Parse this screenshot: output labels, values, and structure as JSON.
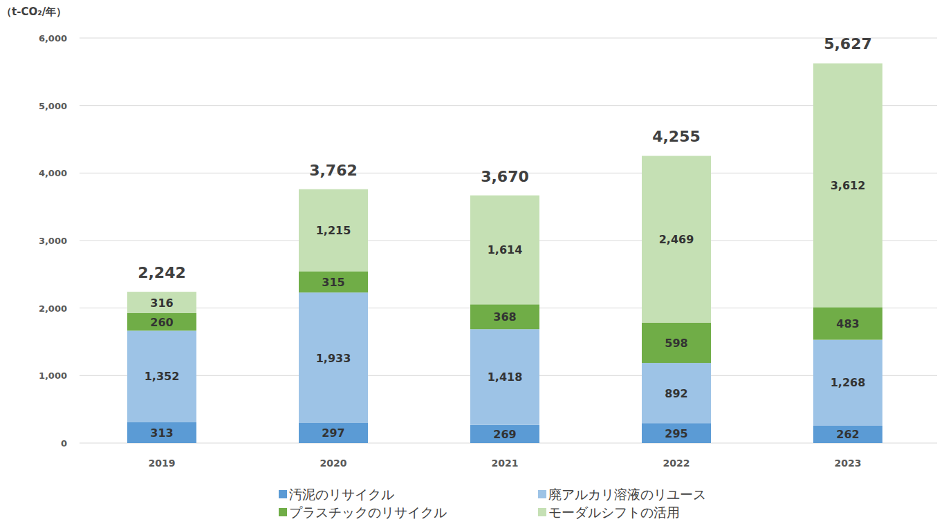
{
  "chart_data": {
    "type": "bar",
    "y_label": "（t-CO₂/年）",
    "categories": [
      "2019",
      "2020",
      "2021",
      "2022",
      "2023"
    ],
    "series": [
      {
        "name": "汚泥のリサイクル",
        "color": "#5b9bd5",
        "values": [
          313,
          297,
          269,
          295,
          262
        ],
        "value_labels": [
          "313",
          "297",
          "269",
          "295",
          "262"
        ]
      },
      {
        "name": "廃アルカリ溶液のリユース",
        "color": "#9dc3e6",
        "values": [
          1352,
          1933,
          1418,
          892,
          1268
        ],
        "value_labels": [
          "1,352",
          "1,933",
          "1,418",
          "892",
          "1,268"
        ]
      },
      {
        "name": "プラスチックのリサイクル",
        "color": "#70ad47",
        "values": [
          260,
          315,
          368,
          598,
          483
        ],
        "value_labels": [
          "260",
          "315",
          "368",
          "598",
          "483"
        ]
      },
      {
        "name": "モーダルシフトの活用",
        "color": "#c5e0b4",
        "values": [
          316,
          1215,
          1614,
          2469,
          3612
        ],
        "value_labels": [
          "316",
          "1,215",
          "1,614",
          "2,469",
          "3,612"
        ]
      }
    ],
    "totals": [
      2242,
      3762,
      3670,
      4255,
      5627
    ],
    "total_labels": [
      "2,242",
      "3,762",
      "3,670",
      "4,255",
      "5,627"
    ],
    "ylim": [
      0,
      6000
    ],
    "yticks": [
      0,
      {
        "value": 1000,
        "label": "1,000"
      },
      {
        "value": 2000,
        "label": "2,000"
      },
      {
        "value": 3000,
        "label": "3,000"
      },
      {
        "value": 4000,
        "label": "4,000"
      },
      {
        "value": 5000,
        "label": "5,000"
      },
      {
        "value": 6000,
        "label": "6,000"
      }
    ],
    "stacked": true,
    "data_labels": true,
    "grid": true,
    "legend": "bottom"
  }
}
